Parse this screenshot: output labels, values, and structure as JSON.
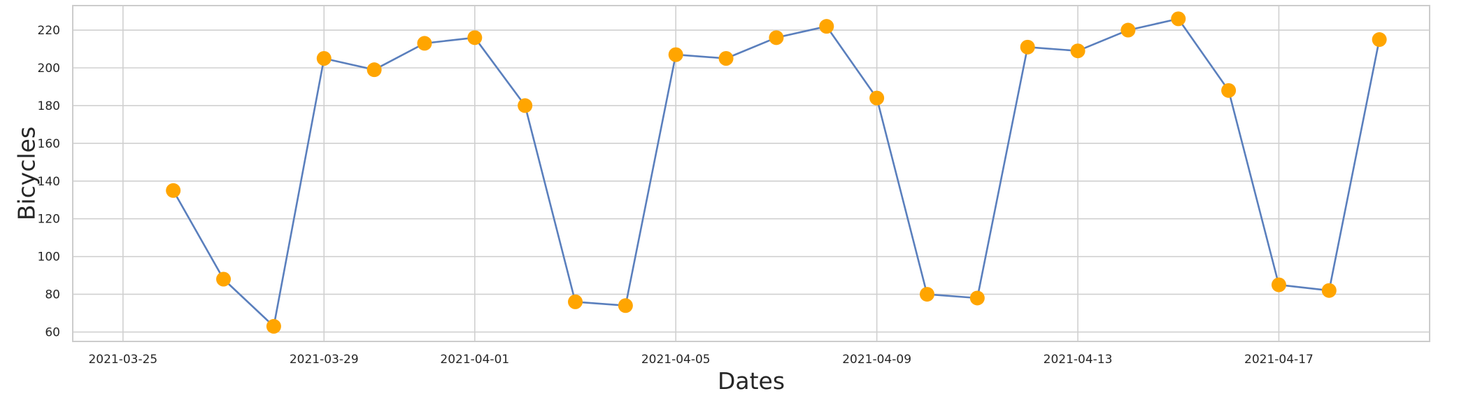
{
  "chart_data": {
    "type": "line",
    "title": "",
    "xlabel": "Dates",
    "ylabel": "Bicycles",
    "x_type": "date",
    "xlim": [
      "2021-03-24",
      "2021-04-20"
    ],
    "ylim": [
      55,
      233
    ],
    "grid": true,
    "legend": "none",
    "x_ticks": [
      "2021-03-25",
      "2021-03-29",
      "2021-04-01",
      "2021-04-05",
      "2021-04-09",
      "2021-04-13",
      "2021-04-17"
    ],
    "y_ticks": [
      60,
      80,
      100,
      120,
      140,
      160,
      180,
      200,
      220
    ],
    "series": [
      {
        "line_color": "#5a7fbd",
        "marker_color": "#ffa500",
        "points": [
          {
            "x": "2021-03-26",
            "y": 135
          },
          {
            "x": "2021-03-27",
            "y": 88
          },
          {
            "x": "2021-03-28",
            "y": 63
          },
          {
            "x": "2021-03-29",
            "y": 205
          },
          {
            "x": "2021-03-30",
            "y": 199
          },
          {
            "x": "2021-03-31",
            "y": 213
          },
          {
            "x": "2021-04-01",
            "y": 216
          },
          {
            "x": "2021-04-02",
            "y": 180
          },
          {
            "x": "2021-04-03",
            "y": 76
          },
          {
            "x": "2021-04-04",
            "y": 74
          },
          {
            "x": "2021-04-05",
            "y": 207
          },
          {
            "x": "2021-04-06",
            "y": 205
          },
          {
            "x": "2021-04-07",
            "y": 216
          },
          {
            "x": "2021-04-08",
            "y": 222
          },
          {
            "x": "2021-04-09",
            "y": 184
          },
          {
            "x": "2021-04-10",
            "y": 80
          },
          {
            "x": "2021-04-11",
            "y": 78
          },
          {
            "x": "2021-04-12",
            "y": 211
          },
          {
            "x": "2021-04-13",
            "y": 209
          },
          {
            "x": "2021-04-14",
            "y": 220
          },
          {
            "x": "2021-04-15",
            "y": 226
          },
          {
            "x": "2021-04-16",
            "y": 188
          },
          {
            "x": "2021-04-17",
            "y": 85
          },
          {
            "x": "2021-04-18",
            "y": 82
          },
          {
            "x": "2021-04-19",
            "y": 215
          }
        ]
      }
    ]
  },
  "colors": {
    "background": "#ffffff",
    "grid": "#d0d0d0",
    "axes_frame": "#cccccc",
    "text": "#262626"
  }
}
